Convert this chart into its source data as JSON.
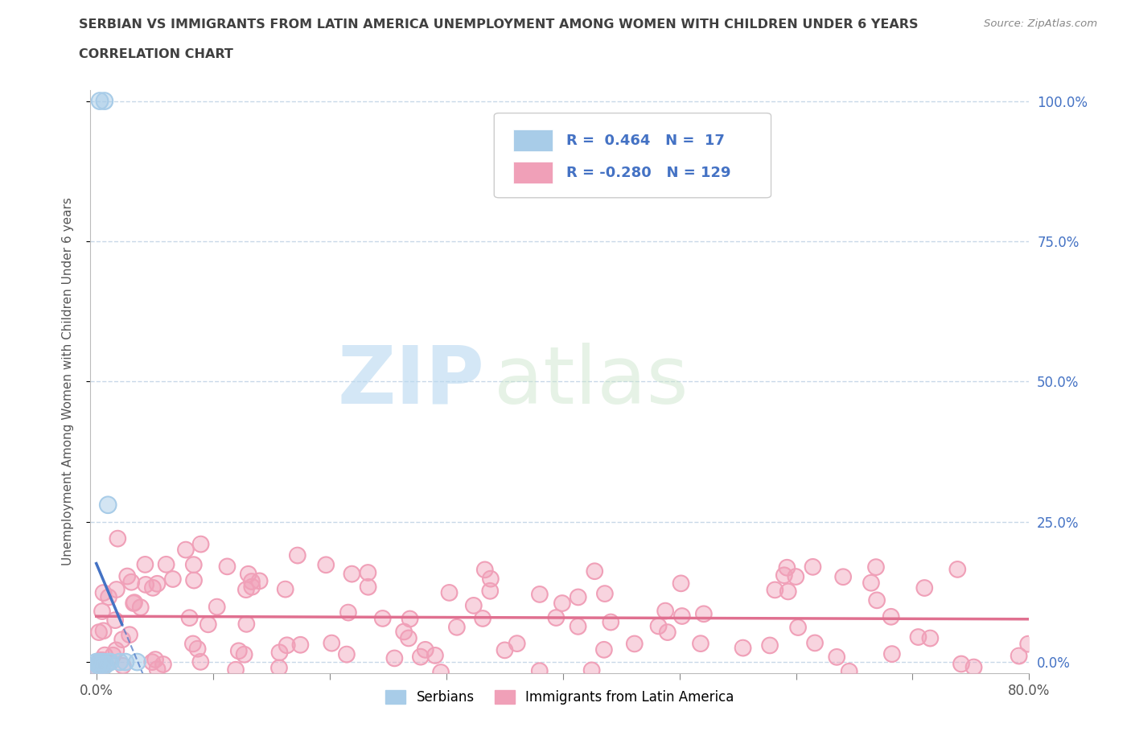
{
  "title_line1": "SERBIAN VS IMMIGRANTS FROM LATIN AMERICA UNEMPLOYMENT AMONG WOMEN WITH CHILDREN UNDER 6 YEARS",
  "title_line2": "CORRELATION CHART",
  "source": "Source: ZipAtlas.com",
  "ylabel": "Unemployment Among Women with Children Under 6 years",
  "xlim": [
    -0.005,
    0.8
  ],
  "ylim": [
    -0.02,
    1.02
  ],
  "yticks": [
    0.0,
    0.25,
    0.5,
    0.75,
    1.0
  ],
  "yticklabels_right": [
    "0.0%",
    "25.0%",
    "50.0%",
    "75.0%",
    "100.0%"
  ],
  "xtick_positions": [
    0.0,
    0.1,
    0.2,
    0.3,
    0.4,
    0.5,
    0.6,
    0.7,
    0.8
  ],
  "xticklabels": [
    "0.0%",
    "",
    "",
    "",
    "",
    "",
    "",
    "",
    "80.0%"
  ],
  "serbian_color": "#a8cce8",
  "latin_color": "#f0a0b8",
  "serbian_line_color": "#4472c4",
  "latin_line_color": "#e07090",
  "legend_serbian_label": "R =  0.464   N =  17",
  "legend_latin_label": "R = -0.280   N = 129",
  "legend_title_serbian": "Serbians",
  "legend_title_latin": "Immigrants from Latin America",
  "watermark_zip": "ZIP",
  "watermark_atlas": "atlas",
  "background_color": "#ffffff",
  "grid_color": "#c8d8e8",
  "tick_color": "#4472c4",
  "title_color": "#404040"
}
